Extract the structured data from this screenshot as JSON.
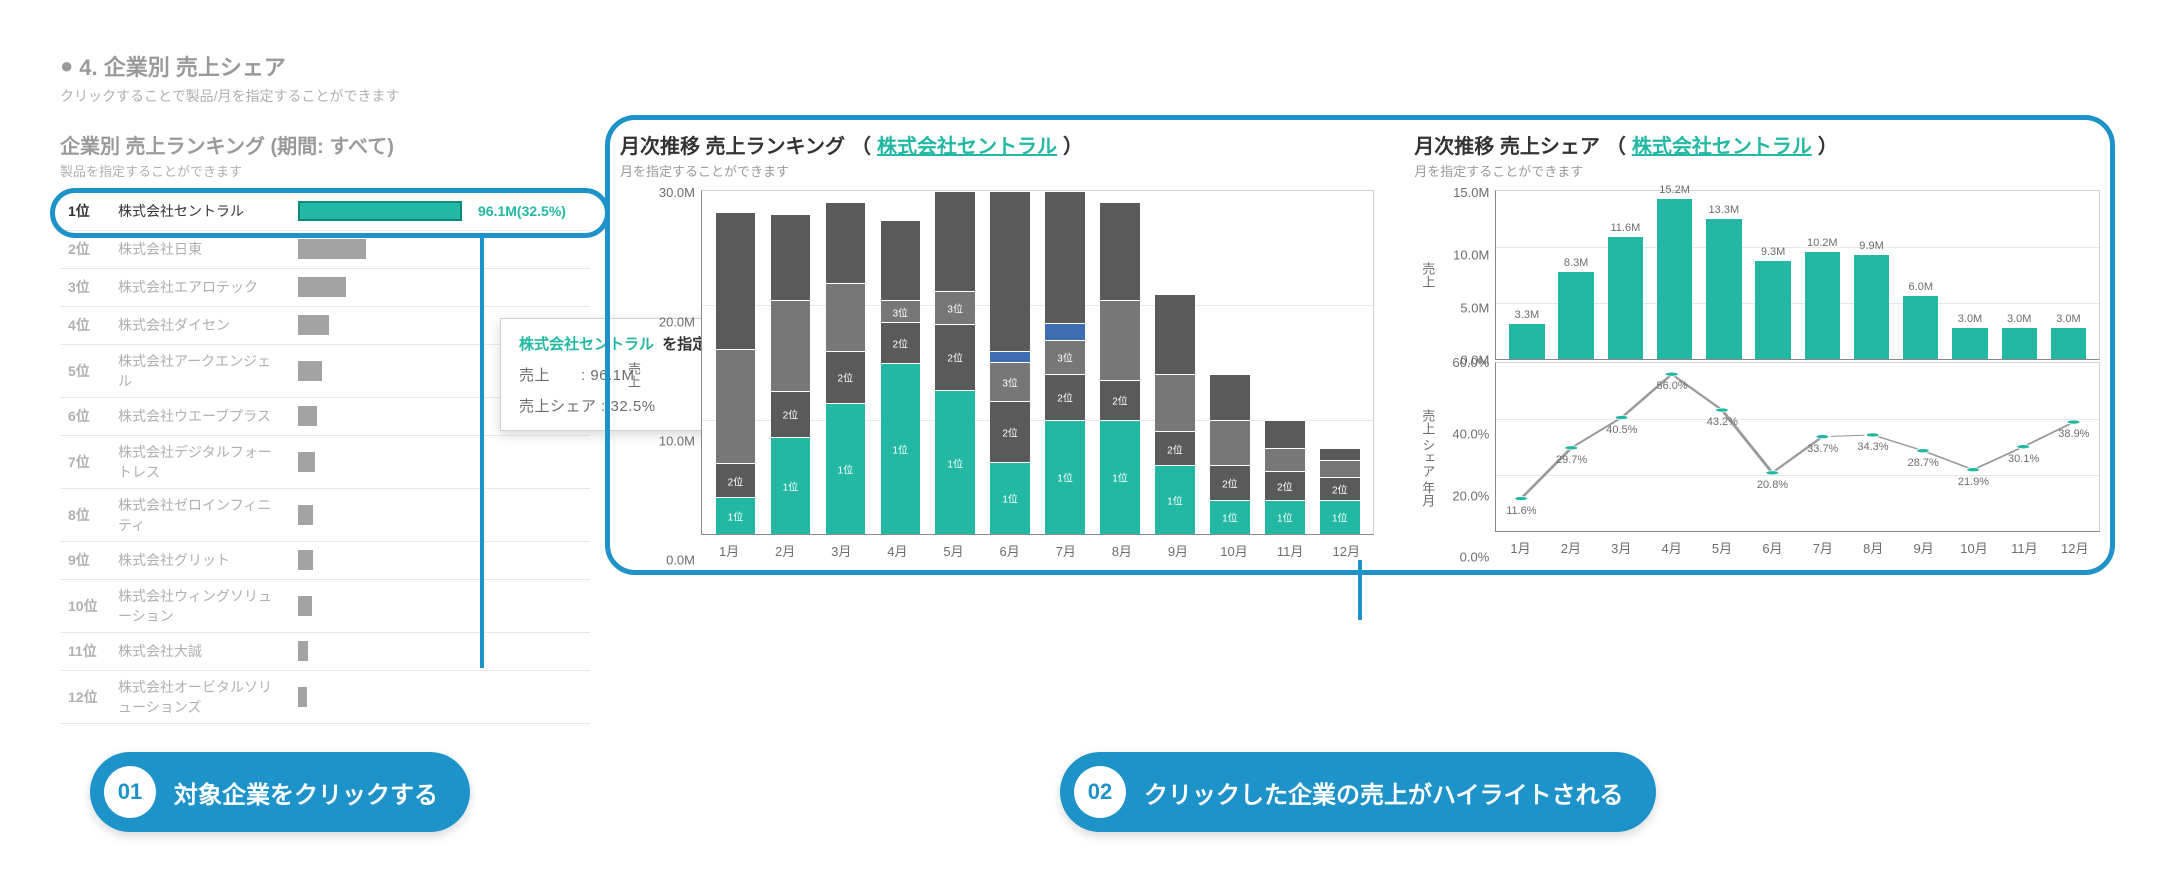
{
  "colors": {
    "accent": "#22b8a3",
    "accent_dark": "#0d8b7a",
    "ring": "#1d93c9",
    "grey_text": "#9a9a9a",
    "grey_light": "#b0b0b0",
    "grid": "#e8e8e8",
    "seg_grey": "#5a5a5a",
    "seg_grey_mid": "#777777",
    "seg_blue": "#3e6db3"
  },
  "section": {
    "title": "4. 企業別 売上シェア",
    "subtitle": "クリックすることで製品/月を指定することができます"
  },
  "ranking": {
    "title": "企業別 売上ランキング (期間: すべて)",
    "subtitle": "製品を指定することができます",
    "max_value": 96.1,
    "rows": [
      {
        "rank": "1位",
        "company": "株式会社セントラル",
        "value": 96.1,
        "label": "96.1M(32.5%)",
        "highlight": true
      },
      {
        "rank": "2位",
        "company": "株式会社日東",
        "value": 40,
        "label": ""
      },
      {
        "rank": "3位",
        "company": "株式会社エアロテック",
        "value": 28,
        "label": ""
      },
      {
        "rank": "4位",
        "company": "株式会社ダイセン",
        "value": 18,
        "label": ""
      },
      {
        "rank": "5位",
        "company": "株式会社アークエンジェル",
        "value": 14,
        "label": ""
      },
      {
        "rank": "6位",
        "company": "株式会社ウエーブプラス",
        "value": 11,
        "label": ""
      },
      {
        "rank": "7位",
        "company": "株式会社デジタルフォートレス",
        "value": 10,
        "label": ""
      },
      {
        "rank": "8位",
        "company": "株式会社ゼロインフィニティ",
        "value": 9,
        "label": ""
      },
      {
        "rank": "9位",
        "company": "株式会社グリット",
        "value": 8.5,
        "label": ""
      },
      {
        "rank": "10位",
        "company": "株式会社ウィングソリューション",
        "value": 8,
        "label": ""
      },
      {
        "rank": "11位",
        "company": "株式会社大誠",
        "value": 6,
        "label": ""
      },
      {
        "rank": "12位",
        "company": "株式会社オービタルソリューションズ",
        "value": 5,
        "label": ""
      }
    ]
  },
  "tooltip": {
    "company": "株式会社セントラル",
    "suffix": "を指定する",
    "row1": "売上　　: 96.1M",
    "row2": "売上シェア : 32.5%"
  },
  "stacked_chart": {
    "title_prefix": "月次推移 売上ランキング",
    "link": "株式会社セントラル",
    "subtitle": "月を指定することができます",
    "y_label": "売上",
    "y_ticks": [
      "30.0M",
      "20.0M",
      "10.0M",
      "0.0M"
    ],
    "y_max": 30,
    "months": [
      "1月",
      "2月",
      "3月",
      "4月",
      "5月",
      "6月",
      "7月",
      "8月",
      "9月",
      "10月",
      "11月",
      "12月"
    ],
    "bars": [
      {
        "segments": [
          {
            "v": 3.2,
            "c": "#22b8a3",
            "l": "1位"
          },
          {
            "v": 3.0,
            "c": "#5a5a5a",
            "l": "2位"
          },
          {
            "v": 10,
            "c": "#777777"
          },
          {
            "v": 12,
            "c": "#5a5a5a"
          }
        ]
      },
      {
        "segments": [
          {
            "v": 8.5,
            "c": "#22b8a3",
            "l": "1位"
          },
          {
            "v": 4.0,
            "c": "#5a5a5a",
            "l": "2位"
          },
          {
            "v": 8,
            "c": "#777777"
          },
          {
            "v": 7.5,
            "c": "#5a5a5a"
          }
        ]
      },
      {
        "segments": [
          {
            "v": 11.5,
            "c": "#22b8a3",
            "l": "1位"
          },
          {
            "v": 4.5,
            "c": "#5a5a5a",
            "l": "2位"
          },
          {
            "v": 6,
            "c": "#777777"
          },
          {
            "v": 7,
            "c": "#5a5a5a"
          }
        ]
      },
      {
        "segments": [
          {
            "v": 15,
            "c": "#22b8a3",
            "l": "1位"
          },
          {
            "v": 3.5,
            "c": "#5a5a5a",
            "l": "2位"
          },
          {
            "v": 2,
            "c": "#777777",
            "l": "3位"
          },
          {
            "v": 7,
            "c": "#5a5a5a"
          }
        ]
      },
      {
        "segments": [
          {
            "v": 13,
            "c": "#22b8a3",
            "l": "1位"
          },
          {
            "v": 6,
            "c": "#5a5a5a",
            "l": "2位"
          },
          {
            "v": 3,
            "c": "#777777",
            "l": "3位"
          },
          {
            "v": 9,
            "c": "#5a5a5a"
          }
        ]
      },
      {
        "segments": [
          {
            "v": 9.5,
            "c": "#22b8a3",
            "l": "1位"
          },
          {
            "v": 8,
            "c": "#5a5a5a",
            "l": "2位"
          },
          {
            "v": 5,
            "c": "#777777",
            "l": "3位"
          },
          {
            "v": 1.5,
            "c": "#3e6db3"
          },
          {
            "v": 21,
            "c": "#5a5a5a"
          }
        ]
      },
      {
        "segments": [
          {
            "v": 10,
            "c": "#22b8a3",
            "l": "1位"
          },
          {
            "v": 4,
            "c": "#5a5a5a",
            "l": "2位"
          },
          {
            "v": 3,
            "c": "#777777",
            "l": "3位"
          },
          {
            "v": 1.5,
            "c": "#3e6db3"
          },
          {
            "v": 11.5,
            "c": "#5a5a5a"
          }
        ]
      },
      {
        "segments": [
          {
            "v": 10,
            "c": "#22b8a3",
            "l": "1位"
          },
          {
            "v": 3.5,
            "c": "#5a5a5a",
            "l": "2位"
          },
          {
            "v": 7,
            "c": "#777777"
          },
          {
            "v": 8.5,
            "c": "#5a5a5a"
          }
        ]
      },
      {
        "segments": [
          {
            "v": 6,
            "c": "#22b8a3",
            "l": "1位"
          },
          {
            "v": 3,
            "c": "#5a5a5a",
            "l": "2位"
          },
          {
            "v": 5,
            "c": "#777777"
          },
          {
            "v": 7,
            "c": "#5a5a5a"
          }
        ]
      },
      {
        "segments": [
          {
            "v": 3,
            "c": "#22b8a3",
            "l": "1位"
          },
          {
            "v": 3,
            "c": "#5a5a5a",
            "l": "2位"
          },
          {
            "v": 4,
            "c": "#777777"
          },
          {
            "v": 4,
            "c": "#5a5a5a"
          }
        ]
      },
      {
        "segments": [
          {
            "v": 3,
            "c": "#22b8a3",
            "l": "1位"
          },
          {
            "v": 2.5,
            "c": "#5a5a5a",
            "l": "2位"
          },
          {
            "v": 2,
            "c": "#777777"
          },
          {
            "v": 2.5,
            "c": "#5a5a5a"
          }
        ]
      },
      {
        "segments": [
          {
            "v": 3,
            "c": "#22b8a3",
            "l": "1位"
          },
          {
            "v": 2,
            "c": "#5a5a5a",
            "l": "2位"
          },
          {
            "v": 1.5,
            "c": "#777777"
          },
          {
            "v": 1,
            "c": "#5a5a5a"
          }
        ]
      }
    ]
  },
  "share_chart": {
    "title_prefix": "月次推移 売上シェア",
    "link": "株式会社セントラル",
    "subtitle": "月を指定することができます",
    "bar": {
      "y_label": "売上",
      "y_ticks": [
        "15.0M",
        "10.0M",
        "5.0M",
        "0.0M"
      ],
      "y_max": 16,
      "values": [
        3.3,
        8.3,
        11.6,
        15.2,
        13.3,
        9.3,
        10.2,
        9.9,
        6.0,
        3.0,
        3.0,
        3.0
      ],
      "labels": [
        "3.3M",
        "8.3M",
        "11.6M",
        "15.2M",
        "13.3M",
        "9.3M",
        "10.2M",
        "9.9M",
        "6.0M",
        "3.0M",
        "3.0M",
        "3.0M"
      ]
    },
    "line": {
      "y_label": "売上 シェア 年月",
      "y_ticks": [
        "60.0%",
        "40.0%",
        "20.0%",
        "0.0%"
      ],
      "y_max": 60,
      "values": [
        11.6,
        29.7,
        40.5,
        56.0,
        43.2,
        20.8,
        33.7,
        34.3,
        28.7,
        21.9,
        30.1,
        38.9
      ],
      "labels": [
        "11.6%",
        "29.7%",
        "40.5%",
        "56.0%",
        "43.2%",
        "20.8%",
        "33.7%",
        "34.3%",
        "28.7%",
        "21.9%",
        "30.1%",
        "38.9%"
      ]
    },
    "months": [
      "1月",
      "2月",
      "3月",
      "4月",
      "5月",
      "6月",
      "7月",
      "8月",
      "9月",
      "10月",
      "11月",
      "12月"
    ]
  },
  "callouts": [
    {
      "num": "01",
      "text": "対象企業をクリックする"
    },
    {
      "num": "02",
      "text": "クリックした企業の売上がハイライトされる"
    }
  ]
}
